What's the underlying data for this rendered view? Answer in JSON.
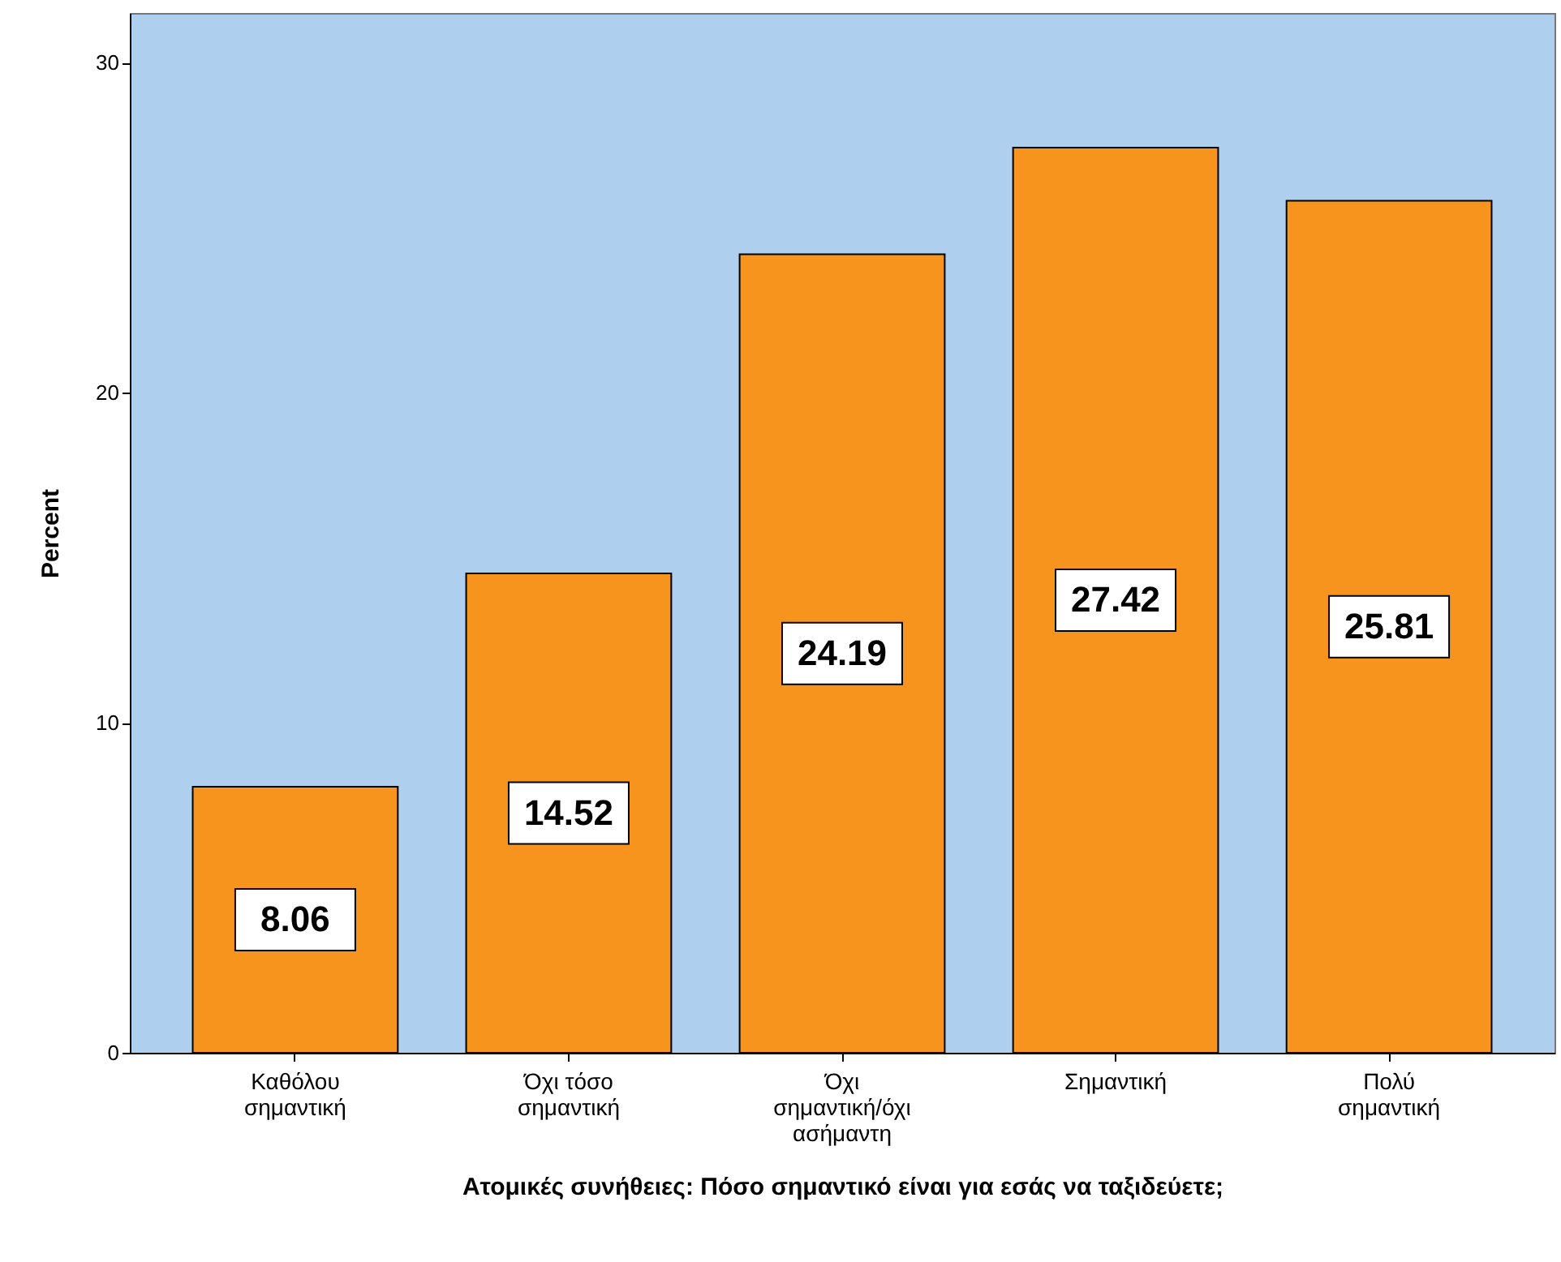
{
  "chart_data": {
    "type": "bar",
    "xlabel": "Ατομικές συνήθειες: Πόσο σημαντικό είναι για εσάς να ταξιδεύετε;",
    "ylabel": "Percent",
    "categories": [
      "Καθόλου σημαντική",
      "Όχι τόσο σημαντική",
      "Όχι σημαντική/όχι ασήμαντη",
      "Σημαντική",
      "Πολύ σημαντική"
    ],
    "values": [
      8.06,
      14.52,
      24.19,
      27.42,
      25.81
    ],
    "color": "#f7941d",
    "ylim": [
      0,
      31.5
    ],
    "yticks": [
      0,
      10,
      20,
      30
    ],
    "data_labels": true,
    "grid": false
  }
}
